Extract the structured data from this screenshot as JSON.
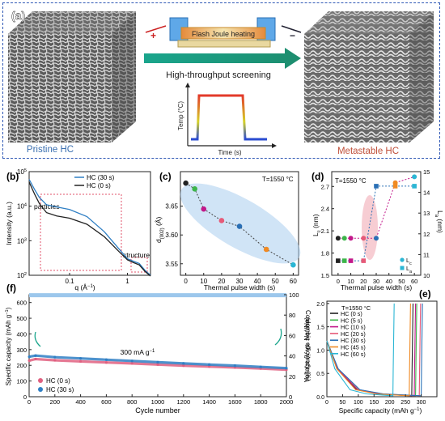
{
  "figure": {
    "panel_a": {
      "label": "(a)",
      "process_label": "Flash Joule heating",
      "screening_label": "High-throughput screening",
      "left_caption": "Pristine HC",
      "right_caption": "Metastable  HC",
      "plus_sign": "+",
      "minus_sign": "−",
      "inset_ylabel": "Temp (°C)",
      "inset_xlabel": "Time (s)"
    },
    "panel_b": {
      "label": "(b)",
      "annotations": [
        "particles",
        "structure"
      ],
      "legend": [
        "HC (30 s)",
        "HC (0 s)"
      ]
    },
    "panel_c": {
      "label": "(c)",
      "condition": "T=1550 °C"
    },
    "panel_d": {
      "label": "(d)",
      "condition": "T=1550 °C",
      "legend": [
        "L",
        "L"
      ]
    },
    "panel_e": {
      "label": "(e)",
      "condition": "T=1550 °C"
    },
    "panel_f": {
      "label": "(f)",
      "annotation": "300 mA g",
      "legend": [
        "HC (0 s)",
        "HC (30 s)"
      ]
    },
    "colors": {
      "blue": "#2f7fc4",
      "black": "#222222",
      "pink": "#e06080",
      "panel_border": "#2f58b5",
      "arrow_teal": "#1aa58c"
    }
  },
  "chart_data": [
    {
      "panel": "b",
      "type": "line",
      "xlabel": "q (Å",
      "ylabel": "Intensity (a.u.)",
      "xscale": "log",
      "yscale": "log",
      "xlim": [
        0.02,
        2.5
      ],
      "ylim": [
        100,
        100000
      ],
      "xticks": [
        "0.1",
        "1"
      ],
      "yticks": [
        "10",
        "10",
        "10",
        "10"
      ],
      "ytick_exponents": [
        "2",
        "3",
        "4",
        "5"
      ],
      "series": [
        {
          "name": "HC (30 s)",
          "x": [
            0.02,
            0.025,
            0.03,
            0.04,
            0.06,
            0.1,
            0.2,
            0.4,
            0.7,
            1.0,
            1.3,
            1.6,
            2.0,
            2.5
          ],
          "y": [
            60000,
            30000,
            18000,
            11000,
            9500,
            8000,
            5000,
            1800,
            600,
            300,
            250,
            220,
            140,
            100
          ]
        },
        {
          "name": "HC (0 s)",
          "x": [
            0.02,
            0.025,
            0.03,
            0.04,
            0.06,
            0.1,
            0.2,
            0.4,
            0.7,
            1.0,
            1.3,
            1.6,
            2.0,
            2.5
          ],
          "y": [
            50000,
            22000,
            12000,
            6500,
            5200,
            4500,
            3000,
            1300,
            500,
            280,
            230,
            200,
            130,
            95
          ]
        }
      ]
    },
    {
      "panel": "c",
      "type": "scatter",
      "xlabel": "Thermal pulse width (s)",
      "ylabel": "d",
      "ylabel_subscript": "(002)",
      "ylabel_unit": "(Å)",
      "xlim": [
        -3,
        63
      ],
      "ylim": [
        3.53,
        3.71
      ],
      "xticks": [
        "0",
        "10",
        "20",
        "30",
        "40",
        "50",
        "60"
      ],
      "yticks": [
        "3.55",
        "3.60",
        "3.65"
      ],
      "x": [
        0,
        5,
        10,
        20,
        30,
        45,
        60
      ],
      "y": [
        3.69,
        3.68,
        3.645,
        3.625,
        3.615,
        3.575,
        3.548
      ],
      "point_colors": [
        "#222222",
        "#3cb54a",
        "#c2188a",
        "#e65a78",
        "#2a6fb5",
        "#f08a24",
        "#2bb6d4"
      ]
    },
    {
      "panel": "d",
      "type": "scatter",
      "xlabel": "Thermal pulse width (s)",
      "ylabel": "L",
      "ylabel_subscript": "c",
      "ylabel_unit": "(nm)",
      "y2label": "L",
      "y2label_subscript": "a",
      "y2label_unit": "(nm)",
      "xlim": [
        -5,
        65
      ],
      "ylim": [
        1.5,
        2.9
      ],
      "y2lim": [
        10,
        15
      ],
      "xticks": [
        "0",
        "10",
        "20",
        "30",
        "40",
        "50",
        "60"
      ],
      "yticks": [
        "1.5",
        "1.8",
        "2.1",
        "2.4",
        "2.7"
      ],
      "y2ticks": [
        "10",
        "11",
        "12",
        "13",
        "14",
        "15"
      ],
      "series": [
        {
          "name": "L",
          "subscript": "c",
          "x": [
            0,
            5,
            10,
            20,
            30,
            45,
            60
          ],
          "y": [
            2.0,
            2.0,
            2.0,
            2.0,
            2.0,
            2.75,
            2.83
          ]
        },
        {
          "name": "L",
          "subscript": "a",
          "x": [
            0,
            5,
            10,
            20,
            30,
            45,
            60
          ],
          "y": [
            10.7,
            10.7,
            10.7,
            10.7,
            14.3,
            14.3,
            14.3
          ]
        }
      ],
      "point_colors": [
        "#222222",
        "#3cb54a",
        "#c2188a",
        "#e65a78",
        "#2a6fb5",
        "#f08a24",
        "#2bb6d4"
      ]
    },
    {
      "panel": "e",
      "type": "line",
      "xlabel": "Specific capacity (mAh g",
      "ylabel": "Voltage (V vs. Na",
      "ylabel_tail": "/Na)",
      "xlim": [
        0,
        350
      ],
      "ylim": [
        0,
        2.05
      ],
      "xticks": [
        "0",
        "50",
        "100",
        "150",
        "200",
        "250",
        "300"
      ],
      "yticks": [
        "0.0",
        "0.5",
        "1.0",
        "1.5",
        "2.0"
      ],
      "series": [
        {
          "name": "HC (0 s)",
          "end_capacity": 270,
          "color": "#222222"
        },
        {
          "name": "HC (5 s)",
          "end_capacity": 282,
          "color": "#3cb54a"
        },
        {
          "name": "HC (10 s)",
          "end_capacity": 278,
          "color": "#c2188a"
        },
        {
          "name": "HC (20 s)",
          "end_capacity": 294,
          "color": "#e65a78"
        },
        {
          "name": "HC (30 s)",
          "end_capacity": 300,
          "color": "#2a6fb5"
        },
        {
          "name": "HC (45 s)",
          "end_capacity": 262,
          "color": "#f08a24"
        },
        {
          "name": "HC (60 s)",
          "end_capacity": 210,
          "color": "#2bb6d4"
        }
      ]
    },
    {
      "panel": "f",
      "type": "scatter",
      "xlabel": "Cycle number",
      "ylabel": "Specific capacity (mAh g",
      "y2label": "Coulombic efficiency (%)",
      "xlim": [
        0,
        2000
      ],
      "ylim": [
        0,
        650
      ],
      "y2lim": [
        0,
        100
      ],
      "xticks": [
        "0",
        "200",
        "400",
        "600",
        "800",
        "1000",
        "1200",
        "1400",
        "1600",
        "1800",
        "2000"
      ],
      "yticks": [
        "0",
        "100",
        "200",
        "300",
        "400",
        "500",
        "600"
      ],
      "y2ticks": [
        "0",
        "20",
        "40",
        "60",
        "80",
        "100"
      ],
      "series": [
        {
          "name": "HC (0 s)",
          "x": [
            1,
            50,
            200,
            400,
            600,
            800,
            1000,
            1200,
            1400,
            1600,
            1800,
            2000
          ],
          "y": [
            230,
            240,
            232,
            225,
            218,
            212,
            205,
            198,
            192,
            186,
            180,
            172
          ]
        },
        {
          "name": "HC (30 s)",
          "x": [
            1,
            50,
            200,
            400,
            600,
            800,
            1000,
            1200,
            1400,
            1600,
            1800,
            2000
          ],
          "y": [
            255,
            262,
            252,
            244,
            236,
            228,
            220,
            212,
            205,
            198,
            190,
            182
          ]
        },
        {
          "name": "CE",
          "x": [
            0,
            2000
          ],
          "y": [
            99.5,
            99.5
          ]
        }
      ]
    }
  ]
}
